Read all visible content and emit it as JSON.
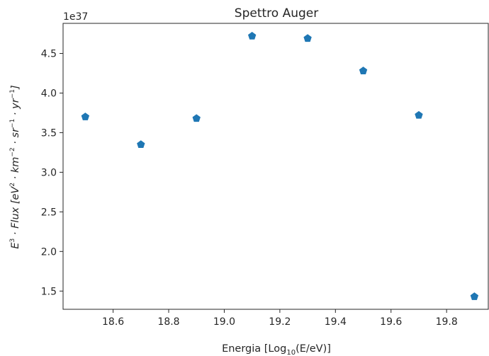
{
  "chart_data": {
    "type": "scatter",
    "title": "Spettro Auger",
    "xlabel_parts": {
      "pre": "Energia [Log",
      "sub": "10",
      "post": "(E/eV)]"
    },
    "ylabel_parts": {
      "a": "E",
      "a_sup": "3",
      "b": " · Flux  [eV",
      "b_sup": "2",
      "c": " · km",
      "c_sup": "−2",
      "d": " · sr",
      "d_sup": "−1",
      "e": " · yr",
      "e_sup": "−1",
      "f": "]"
    },
    "y_offset_label": "1e37",
    "x": [
      18.5,
      18.7,
      18.9,
      19.1,
      19.3,
      19.5,
      19.7,
      19.9
    ],
    "y": [
      3.7,
      3.35,
      3.68,
      4.72,
      4.69,
      4.28,
      3.72,
      1.43
    ],
    "xlim": [
      18.42,
      19.95
    ],
    "ylim": [
      1.27,
      4.88
    ],
    "xticks": [
      "18.6",
      "18.8",
      "19.0",
      "19.2",
      "19.4",
      "19.6",
      "19.8"
    ],
    "yticks": [
      "1.5",
      "2.0",
      "2.5",
      "3.0",
      "3.5",
      "4.0",
      "4.5"
    ],
    "marker": "pentagon",
    "color": "#1f77b4",
    "grid": false
  }
}
